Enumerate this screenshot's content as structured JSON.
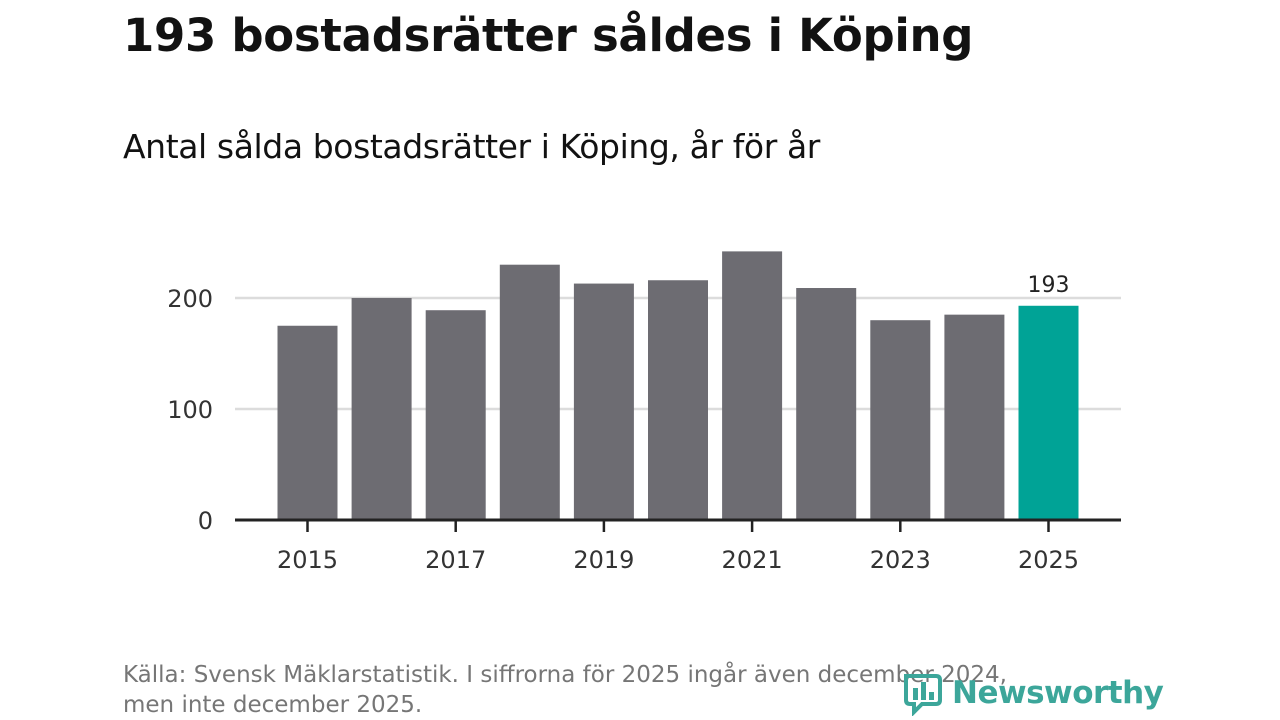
{
  "header": {
    "title": "193 bostadsrätter såldes i Köping",
    "subtitle": "Antal sålda bostadsrätter i Köping, år för år"
  },
  "colors": {
    "bar_default": "#6d6c72",
    "bar_highlight": "#00a396",
    "gridline": "#dcdcdc",
    "axis": "#222222",
    "text": "#333333",
    "logo": "#3ca69a"
  },
  "chart_data": {
    "type": "bar",
    "title": "Antal sålda bostadsrätter i Köping, år för år",
    "xlabel": "",
    "ylabel": "",
    "categories": [
      "2015",
      "2016",
      "2017",
      "2018",
      "2019",
      "2020",
      "2021",
      "2022",
      "2023",
      "2024",
      "2025"
    ],
    "values": [
      175,
      200,
      189,
      230,
      213,
      216,
      242,
      209,
      180,
      185,
      193
    ],
    "highlight_index": 10,
    "data_labels": [
      {
        "index": 10,
        "label": "193"
      }
    ],
    "x_tick_labels": [
      "2015",
      "2017",
      "2019",
      "2021",
      "2023",
      "2025"
    ],
    "y_ticks": [
      0,
      100,
      200
    ],
    "y_tick_labels": [
      "0",
      "100",
      "200"
    ],
    "ylim": [
      0,
      250
    ],
    "grid": true,
    "legend": "none"
  },
  "footer": {
    "source_line1": "Källa: Svensk Mäklarstatistik. I siffrorna för 2025 ingår även december 2024,",
    "source_line2": "men inte december 2025.",
    "logo_text": "Newsworthy",
    "logo_icon": "newsworthy-logo-icon"
  }
}
